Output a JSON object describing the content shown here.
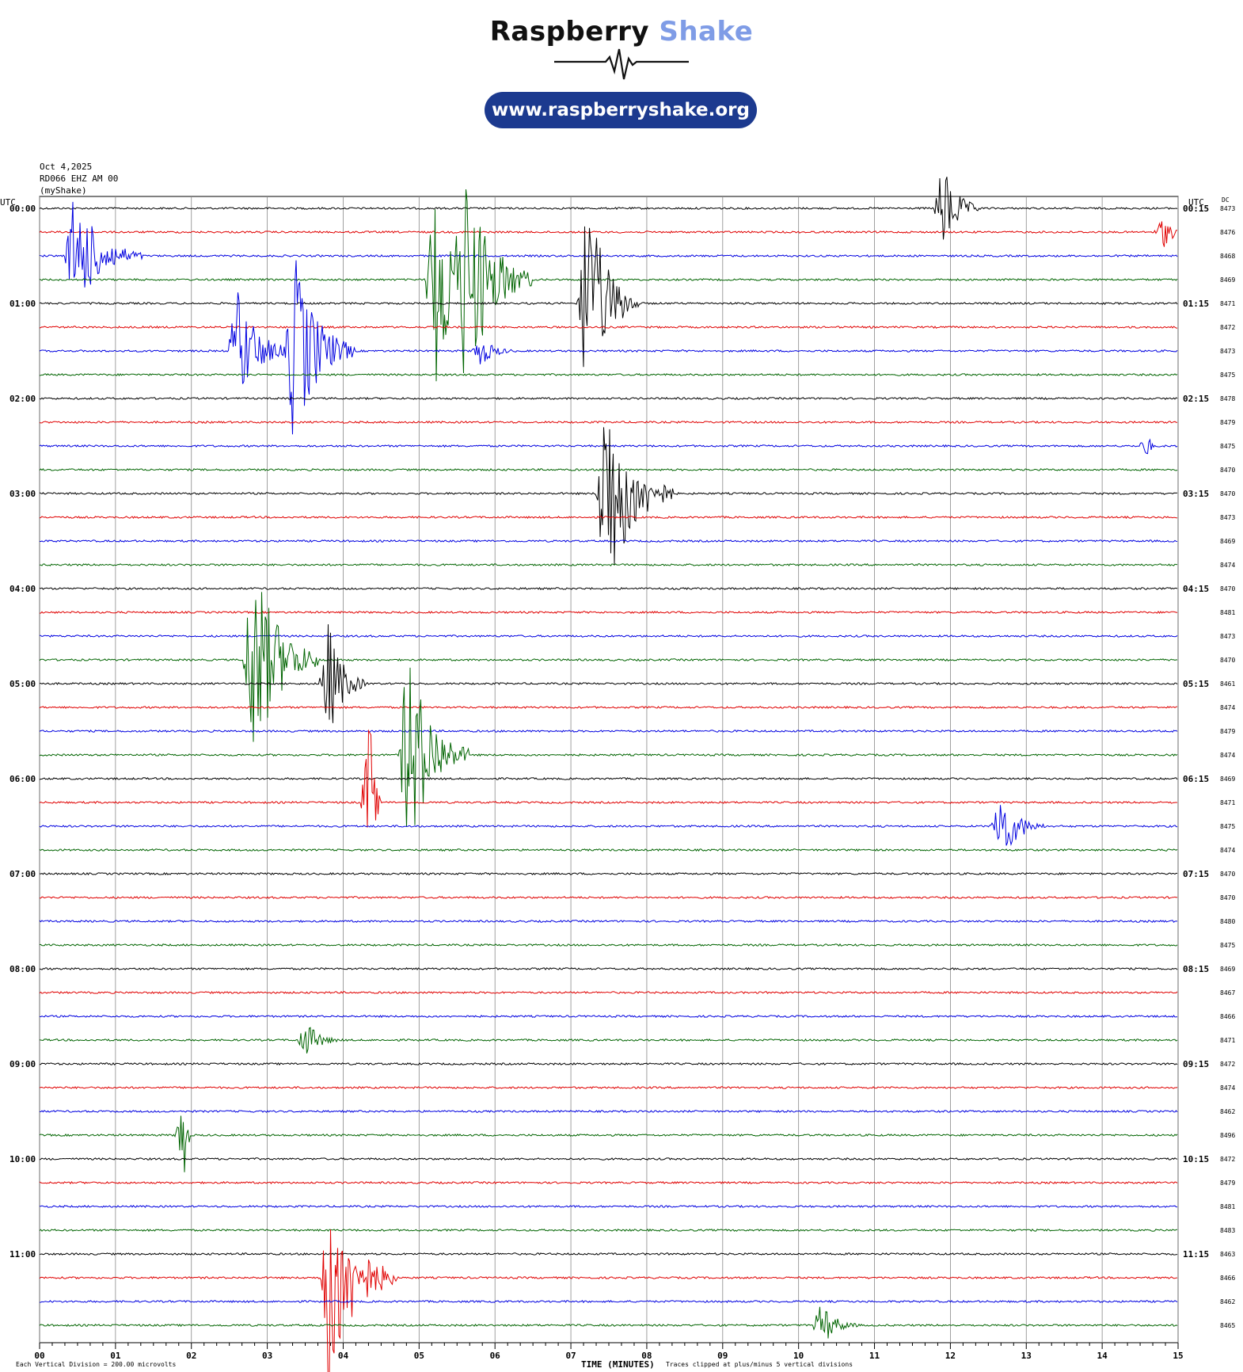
{
  "header": {
    "brand_word1": "Raspberry",
    "brand_word2": "Shake",
    "url": "www.raspberryshake.org"
  },
  "colors": {
    "brand_text": "#111111",
    "brand_accent": "#7f9ce6",
    "url_pill": "#1c3a8f",
    "trace_cycle": [
      "#000000",
      "#e00000",
      "#0000e0",
      "#006400"
    ]
  },
  "station": {
    "date": "Oct 4,2025",
    "channel": "RD066 EHZ AM 00",
    "network": "(myShake)"
  },
  "chart_data": {
    "type": "helicorder",
    "title": "",
    "xlabel": "TIME (MINUTES)",
    "ylabel_left": "UTC",
    "ylabel_right": "UTC",
    "dc_label": "DC",
    "x_ticks": [
      "00",
      "01",
      "02",
      "03",
      "04",
      "05",
      "06",
      "07",
      "08",
      "09",
      "10",
      "11",
      "12",
      "13",
      "14",
      "15"
    ],
    "xlim": [
      0,
      15
    ],
    "minutes_per_line": 15,
    "grid": true,
    "footer_scale": "Each Vertical Division =  200.00 microvolts",
    "footer_clip": "Traces clipped at plus/minus 5 vertical divisions",
    "lines": [
      {
        "left": "00:00",
        "right": "00:15",
        "dc": "8473"
      },
      {
        "left": "",
        "right": "",
        "dc": "8476"
      },
      {
        "left": "",
        "right": "",
        "dc": "8468"
      },
      {
        "left": "",
        "right": "",
        "dc": "8469"
      },
      {
        "left": "01:00",
        "right": "01:15",
        "dc": "8471"
      },
      {
        "left": "",
        "right": "",
        "dc": "8472"
      },
      {
        "left": "",
        "right": "",
        "dc": "8473"
      },
      {
        "left": "",
        "right": "",
        "dc": "8475"
      },
      {
        "left": "02:00",
        "right": "02:15",
        "dc": "8478"
      },
      {
        "left": "",
        "right": "",
        "dc": "8479"
      },
      {
        "left": "",
        "right": "",
        "dc": "8475"
      },
      {
        "left": "",
        "right": "",
        "dc": "8470"
      },
      {
        "left": "03:00",
        "right": "03:15",
        "dc": "8470"
      },
      {
        "left": "",
        "right": "",
        "dc": "8473"
      },
      {
        "left": "",
        "right": "",
        "dc": "8469"
      },
      {
        "left": "",
        "right": "",
        "dc": "8474"
      },
      {
        "left": "04:00",
        "right": "04:15",
        "dc": "8470"
      },
      {
        "left": "",
        "right": "",
        "dc": "8481"
      },
      {
        "left": "",
        "right": "",
        "dc": "8473"
      },
      {
        "left": "",
        "right": "",
        "dc": "8470"
      },
      {
        "left": "05:00",
        "right": "05:15",
        "dc": "8461"
      },
      {
        "left": "",
        "right": "",
        "dc": "8474"
      },
      {
        "left": "",
        "right": "",
        "dc": "8479"
      },
      {
        "left": "",
        "right": "",
        "dc": "8474"
      },
      {
        "left": "06:00",
        "right": "06:15",
        "dc": "8469"
      },
      {
        "left": "",
        "right": "",
        "dc": "8471"
      },
      {
        "left": "",
        "right": "",
        "dc": "8475"
      },
      {
        "left": "",
        "right": "",
        "dc": "8474"
      },
      {
        "left": "07:00",
        "right": "07:15",
        "dc": "8470"
      },
      {
        "left": "",
        "right": "",
        "dc": "8470"
      },
      {
        "left": "",
        "right": "",
        "dc": "8480"
      },
      {
        "left": "",
        "right": "",
        "dc": "8475"
      },
      {
        "left": "08:00",
        "right": "08:15",
        "dc": "8469"
      },
      {
        "left": "",
        "right": "",
        "dc": "8467"
      },
      {
        "left": "",
        "right": "",
        "dc": "8466"
      },
      {
        "left": "",
        "right": "",
        "dc": "8471"
      },
      {
        "left": "09:00",
        "right": "09:15",
        "dc": "8472"
      },
      {
        "left": "",
        "right": "",
        "dc": "8474"
      },
      {
        "left": "",
        "right": "",
        "dc": "8462"
      },
      {
        "left": "",
        "right": "",
        "dc": "8496"
      },
      {
        "left": "10:00",
        "right": "10:15",
        "dc": "8472"
      },
      {
        "left": "",
        "right": "",
        "dc": "8479"
      },
      {
        "left": "",
        "right": "",
        "dc": "8481"
      },
      {
        "left": "",
        "right": "",
        "dc": "8483"
      },
      {
        "left": "11:00",
        "right": "11:15",
        "dc": "8463"
      },
      {
        "left": "",
        "right": "",
        "dc": "8466"
      },
      {
        "left": "",
        "right": "",
        "dc": "8462"
      },
      {
        "left": "",
        "right": "",
        "dc": "8465"
      }
    ],
    "events": [
      {
        "line": 0,
        "minute": 11.9,
        "amp": 60,
        "dur": 0.5
      },
      {
        "line": 1,
        "minute": 14.8,
        "amp": 22,
        "dur": 0.35
      },
      {
        "line": 2,
        "minute": 0.45,
        "amp": 80,
        "dur": 0.9
      },
      {
        "line": 3,
        "minute": 5.2,
        "amp": 150,
        "dur": 0.9
      },
      {
        "line": 3,
        "minute": 5.6,
        "amp": 150,
        "dur": 0.9
      },
      {
        "line": 4,
        "minute": 7.2,
        "amp": 150,
        "dur": 0.7
      },
      {
        "line": 6,
        "minute": 2.6,
        "amp": 80,
        "dur": 0.7
      },
      {
        "line": 6,
        "minute": 3.35,
        "amp": 130,
        "dur": 0.8
      },
      {
        "line": 6,
        "minute": 5.8,
        "amp": 20,
        "dur": 0.5
      },
      {
        "line": 10,
        "minute": 14.6,
        "amp": 20,
        "dur": 0.1
      },
      {
        "line": 12,
        "minute": 7.45,
        "amp": 150,
        "dur": 0.9
      },
      {
        "line": 19,
        "minute": 2.8,
        "amp": 140,
        "dur": 0.9
      },
      {
        "line": 20,
        "minute": 3.8,
        "amp": 80,
        "dur": 0.5
      },
      {
        "line": 23,
        "minute": 4.85,
        "amp": 140,
        "dur": 0.8
      },
      {
        "line": 26,
        "minute": 12.65,
        "amp": 50,
        "dur": 0.6
      },
      {
        "line": 25,
        "minute": 4.35,
        "amp": 120,
        "dur": 0.15
      },
      {
        "line": 35,
        "minute": 3.5,
        "amp": 25,
        "dur": 0.5
      },
      {
        "line": 39,
        "minute": 1.9,
        "amp": 70,
        "dur": 0.1
      },
      {
        "line": 45,
        "minute": 3.8,
        "amp": 150,
        "dur": 0.9
      },
      {
        "line": 47,
        "minute": 10.3,
        "amp": 30,
        "dur": 0.5
      }
    ]
  }
}
